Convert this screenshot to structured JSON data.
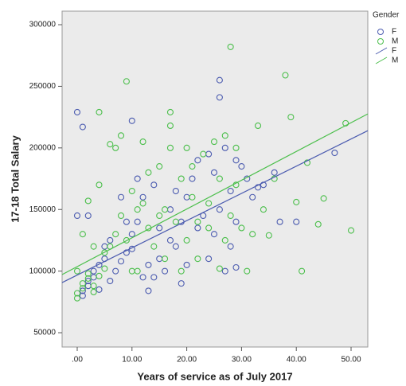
{
  "chart_data": {
    "type": "scatter",
    "x_label": "Years of service as of July 2017",
    "y_label": "17-18 Total Salary",
    "legend_title": "Gender",
    "legend": "outside-right",
    "background": "#ebebeb",
    "xlim": [
      -2.76,
      53.05
    ],
    "ylim": [
      38400,
      311000
    ],
    "xticks": [
      {
        "value": 0,
        "label": ".00"
      },
      {
        "value": 10,
        "label": "10.00"
      },
      {
        "value": 20,
        "label": "20.00"
      },
      {
        "value": 30,
        "label": "30.00"
      },
      {
        "value": 40,
        "label": "40.00"
      },
      {
        "value": 50,
        "label": "50.00"
      }
    ],
    "yticks": [
      50000,
      100000,
      150000,
      200000,
      250000,
      300000
    ],
    "series": [
      {
        "name": "F",
        "color": "#4c5cb0",
        "x": [
          0,
          1,
          10,
          26,
          26,
          0,
          37,
          40,
          47,
          29,
          33,
          1,
          1,
          2,
          2,
          3,
          3,
          4,
          5,
          5,
          6,
          7,
          8,
          9,
          10,
          10,
          11,
          11,
          12,
          12,
          13,
          13,
          14,
          15,
          15,
          16,
          17,
          17,
          18,
          18,
          19,
          20,
          20,
          21,
          22,
          22,
          23,
          24,
          25,
          25,
          26,
          27,
          27,
          28,
          28,
          29,
          30,
          31,
          32,
          34,
          36,
          2,
          4,
          6,
          8,
          9,
          14,
          19,
          24,
          29
        ],
        "values": [
          229000,
          217000,
          222000,
          255000,
          241000,
          145000,
          140000,
          140000,
          196000,
          190000,
          168000,
          80000,
          84000,
          88000,
          92000,
          95000,
          100000,
          105000,
          110000,
          120000,
          125000,
          100000,
          108000,
          115000,
          118000,
          130000,
          140000,
          175000,
          160000,
          95000,
          105000,
          84000,
          170000,
          135000,
          110000,
          100000,
          125000,
          150000,
          165000,
          120000,
          140000,
          105000,
          160000,
          175000,
          135000,
          190000,
          145000,
          110000,
          180000,
          130000,
          150000,
          200000,
          100000,
          165000,
          120000,
          140000,
          185000,
          175000,
          160000,
          170000,
          180000,
          145000,
          85000,
          92000,
          160000,
          140000,
          95000,
          90000,
          195000,
          103000
        ],
        "fit": {
          "x": [
            -2.76,
            53.05
          ],
          "values": [
            90700,
            214000
          ]
        }
      },
      {
        "name": "M",
        "color": "#4cbf4c",
        "x": [
          28,
          9,
          38,
          49,
          50,
          41,
          17,
          4,
          39,
          35,
          44,
          45,
          42,
          40,
          33,
          0,
          0,
          1,
          1,
          2,
          2,
          3,
          3,
          4,
          5,
          5,
          6,
          6,
          7,
          8,
          8,
          9,
          10,
          10,
          11,
          12,
          12,
          13,
          13,
          14,
          15,
          15,
          16,
          17,
          17,
          18,
          19,
          19,
          20,
          20,
          21,
          21,
          22,
          23,
          24,
          25,
          26,
          26,
          27,
          27,
          28,
          29,
          29,
          30,
          31,
          32,
          34,
          36,
          3,
          0,
          1,
          2,
          4,
          7,
          11,
          16,
          22,
          24
        ],
        "values": [
          282000,
          254000,
          259000,
          220000,
          133000,
          100000,
          229000,
          229000,
          225000,
          129000,
          138000,
          159000,
          188000,
          156000,
          218000,
          78000,
          82000,
          86000,
          90000,
          94000,
          98000,
          83000,
          88000,
          96000,
          102000,
          115000,
          120000,
          203000,
          130000,
          210000,
          145000,
          125000,
          165000,
          100000,
          150000,
          155000,
          205000,
          135000,
          180000,
          120000,
          145000,
          185000,
          110000,
          200000,
          218000,
          140000,
          175000,
          100000,
          200000,
          125000,
          160000,
          185000,
          140000,
          195000,
          155000,
          205000,
          175000,
          102000,
          210000,
          125000,
          145000,
          200000,
          170000,
          135000,
          100000,
          130000,
          150000,
          175000,
          120000,
          100000,
          130000,
          157000,
          170000,
          200000,
          100000,
          150000,
          110000,
          135000
        ],
        "fit": {
          "x": [
            -2.76,
            53.05
          ],
          "values": [
            97200,
            227600
          ]
        }
      }
    ]
  }
}
